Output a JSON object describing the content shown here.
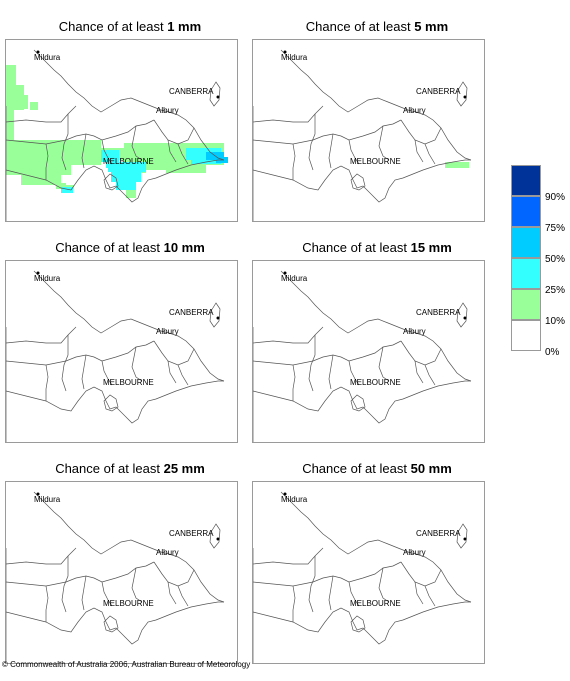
{
  "panels": [
    {
      "title_prefix": "Chance of at least",
      "threshold": "1 mm"
    },
    {
      "title_prefix": "Chance of at least",
      "threshold": "5 mm"
    },
    {
      "title_prefix": "Chance of at least",
      "threshold": "10 mm"
    },
    {
      "title_prefix": "Chance of at least",
      "threshold": "15 mm"
    },
    {
      "title_prefix": "Chance of at least",
      "threshold": "25 mm"
    },
    {
      "title_prefix": "Chance of at least",
      "threshold": "50 mm"
    }
  ],
  "places": {
    "mildura": "Mildura",
    "canberra": "CANBERRA",
    "albury": "Albury",
    "melbourne": "MELBOURNE"
  },
  "legend": {
    "labels": [
      "90%",
      "75%",
      "50%",
      "25%",
      "10%",
      "0%"
    ],
    "colors": [
      "#003399",
      "#0066ff",
      "#00ccff",
      "#33ffff",
      "#99ff99",
      "#ffffff"
    ]
  },
  "copyright": "© Commonwealth of Australia 2006, Australian Bureau of Meteorology"
}
